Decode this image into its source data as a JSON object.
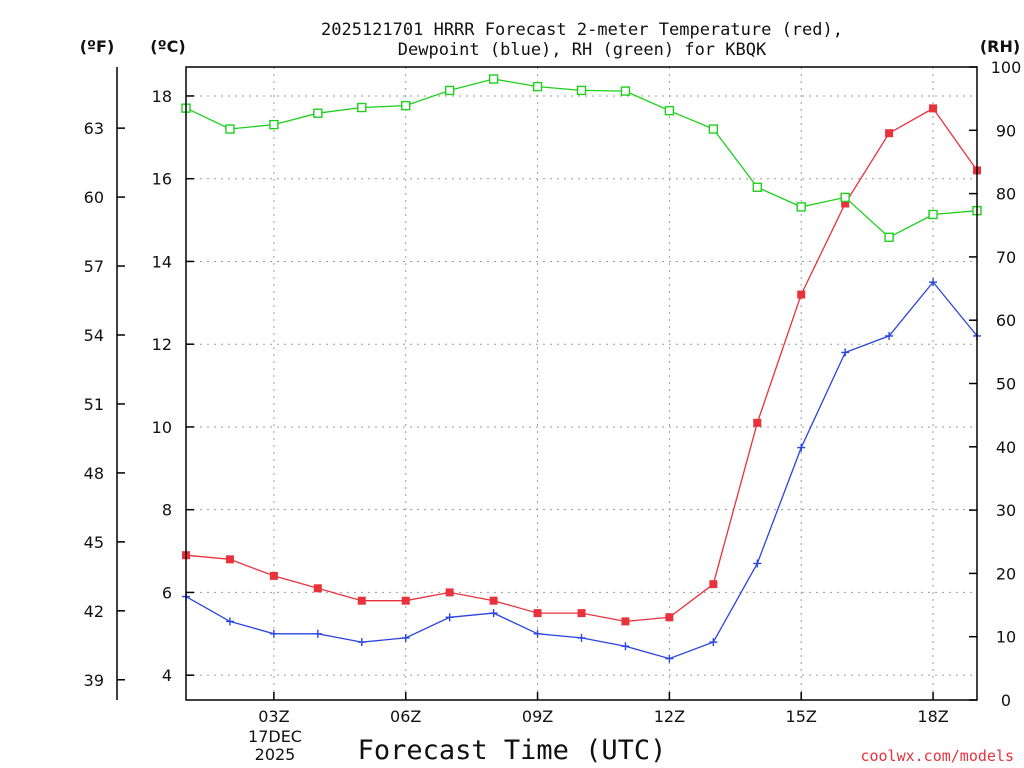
{
  "chart_data": {
    "type": "line",
    "title_line1": "2025121701 HRRR Forecast 2-meter Temperature (red),",
    "title_line2": "Dewpoint (blue), RH (green) for KBQK",
    "xlabel": "Forecast Time (UTC)",
    "date_label_line1": "17DEC",
    "date_label_line2": "2025",
    "credit": "coolwx.com/models",
    "axes": {
      "fahrenheit_label": "(ºF)",
      "celsius_label": "(ºC)",
      "rh_label": "(RH)"
    },
    "x_hours": [
      1,
      2,
      3,
      4,
      5,
      6,
      7,
      8,
      9,
      10,
      11,
      12,
      13,
      14,
      15,
      16,
      17,
      18,
      19
    ],
    "x_ticks": [
      {
        "hour": 3,
        "label": "03Z"
      },
      {
        "hour": 6,
        "label": "06Z"
      },
      {
        "hour": 9,
        "label": "09Z"
      },
      {
        "hour": 12,
        "label": "12Z"
      },
      {
        "hour": 15,
        "label": "15Z"
      },
      {
        "hour": 18,
        "label": "18Z"
      }
    ],
    "xlim": [
      1,
      19
    ],
    "celsius_ylim": [
      3.4,
      18.7
    ],
    "celsius_ticks": [
      "4",
      "6",
      "8",
      "10",
      "12",
      "14",
      "16",
      "18"
    ],
    "fahrenheit_ticks": [
      "39",
      "42",
      "45",
      "48",
      "51",
      "54",
      "57",
      "60",
      "63"
    ],
    "rh_ylim": [
      0,
      100
    ],
    "rh_ticks": [
      "0",
      "10",
      "20",
      "30",
      "40",
      "50",
      "60",
      "70",
      "80",
      "90",
      "100"
    ],
    "grid": true,
    "series": [
      {
        "name": "Temperature",
        "unit": "C",
        "axis": "celsius",
        "color": "#e8323c",
        "marker": "filled-square",
        "values": [
          6.9,
          6.8,
          6.4,
          6.1,
          5.8,
          5.8,
          6.0,
          5.8,
          5.5,
          5.5,
          5.3,
          5.4,
          6.2,
          10.1,
          13.2,
          15.4,
          17.1,
          17.7,
          16.2
        ]
      },
      {
        "name": "Dewpoint",
        "unit": "C",
        "axis": "celsius",
        "color": "#2a44dd",
        "marker": "plus",
        "values": [
          5.9,
          5.3,
          5.0,
          5.0,
          4.8,
          4.9,
          5.4,
          5.5,
          5.0,
          4.9,
          4.7,
          4.4,
          4.8,
          6.7,
          9.5,
          11.8,
          12.2,
          13.5,
          12.2
        ]
      },
      {
        "name": "RH",
        "unit": "%",
        "axis": "rh",
        "color": "#1ed01e",
        "marker": "open-square",
        "values": [
          93.5,
          90.2,
          90.9,
          92.7,
          93.6,
          93.9,
          96.3,
          98.1,
          96.9,
          96.3,
          96.2,
          93.1,
          90.2,
          81.0,
          77.9,
          79.4,
          73.1,
          76.7,
          77.3
        ]
      }
    ]
  }
}
